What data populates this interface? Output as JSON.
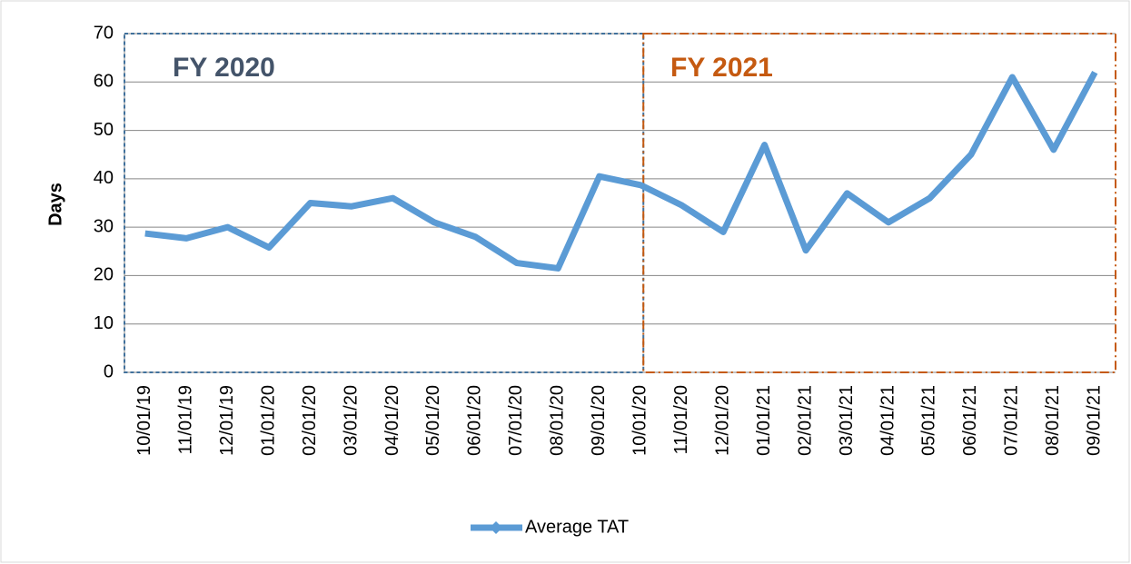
{
  "chart_data": {
    "type": "line",
    "y_label": "Days",
    "categories": [
      "10/01/19",
      "11/01/19",
      "12/01/19",
      "01/01/20",
      "02/01/20",
      "03/01/20",
      "04/01/20",
      "05/01/20",
      "06/01/20",
      "07/01/20",
      "08/01/20",
      "09/01/20",
      "10/01/20",
      "11/01/20",
      "12/01/20",
      "01/01/21",
      "02/01/21",
      "03/01/21",
      "04/01/21",
      "05/01/21",
      "06/01/21",
      "07/01/21",
      "08/01/21",
      "09/01/21"
    ],
    "series": [
      {
        "name": "Average TAT",
        "color": "#5b9bd5",
        "values": [
          28.7,
          27.7,
          30,
          25.8,
          35,
          34.3,
          36,
          31,
          28,
          22.6,
          21.5,
          40.5,
          38.7,
          34.5,
          29,
          47,
          25.2,
          37,
          31,
          36,
          45,
          61,
          46,
          62
        ]
      }
    ],
    "annotations": [
      "FY 2020",
      "FY 2021"
    ],
    "ylim": [
      0,
      70
    ],
    "yticks": [
      0,
      10,
      20,
      30,
      40,
      50,
      60,
      70
    ],
    "grid": true,
    "legend": "bottom"
  }
}
